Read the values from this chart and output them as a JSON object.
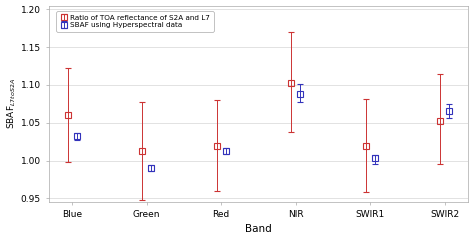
{
  "categories": [
    "Blue",
    "Green",
    "Red",
    "NIR",
    "SWIR1",
    "SWIR2"
  ],
  "red_center": [
    1.06,
    1.013,
    1.02,
    1.103,
    1.02,
    1.052
  ],
  "red_yerr_upper": [
    0.062,
    0.065,
    0.06,
    0.067,
    0.062,
    0.062
  ],
  "red_yerr_lower": [
    0.062,
    0.065,
    0.06,
    0.065,
    0.062,
    0.057
  ],
  "blue_center": [
    1.032,
    0.99,
    1.013,
    1.088,
    1.003,
    1.065
  ],
  "blue_yerr_upper": [
    0.005,
    0.004,
    0.004,
    0.013,
    0.004,
    0.01
  ],
  "blue_yerr_lower": [
    0.005,
    0.004,
    0.004,
    0.01,
    0.007,
    0.008
  ],
  "red_color": "#cc3333",
  "blue_color": "#3333bb",
  "xlabel": "Band",
  "ylabel": "SBAF$_{L7toS2A}$",
  "ylim": [
    0.945,
    1.205
  ],
  "yticks": [
    0.95,
    1.0,
    1.05,
    1.1,
    1.15,
    1.2
  ],
  "legend_label_red": "Ratio of TOA reflectance of S2A and L7",
  "legend_label_blue": "SBAF using Hyperspectral data",
  "background_color": "#ffffff",
  "figsize": [
    4.74,
    2.4
  ],
  "dpi": 100
}
